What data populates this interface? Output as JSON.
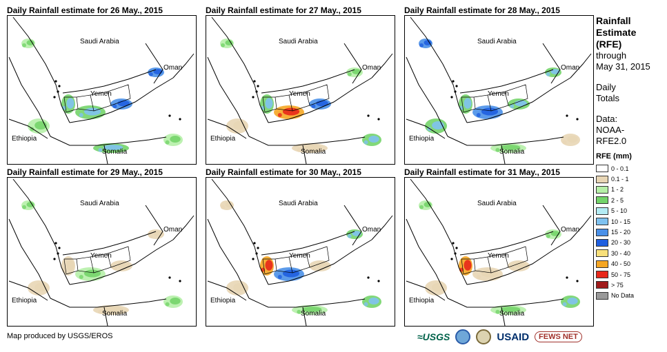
{
  "panels": [
    {
      "title": "Daily Rainfall estimate for 26 May., 2015",
      "rain": [
        "l",
        "l",
        "m",
        "m",
        "h",
        "m",
        "l",
        "h"
      ]
    },
    {
      "title": "Daily Rainfall estimate for 27 May., 2015",
      "rain": [
        "t",
        "l",
        "m",
        "x",
        "h",
        "t",
        "m",
        "l"
      ]
    },
    {
      "title": "Daily Rainfall estimate for 28 May., 2015",
      "rain": [
        "m",
        "h",
        "m",
        "h",
        "m",
        "l",
        "t",
        "m"
      ]
    },
    {
      "title": "Daily Rainfall estimate for 29 May., 2015",
      "rain": [
        "t",
        "l",
        "t",
        "l",
        "t",
        "t",
        "l",
        "t"
      ]
    },
    {
      "title": "Daily Rainfall estimate for 30 May., 2015",
      "rain": [
        "t",
        "t",
        "x",
        "h",
        "t",
        "l",
        "m",
        "m"
      ]
    },
    {
      "title": "Daily Rainfall estimate for 31 May., 2015",
      "rain": [
        "t",
        "l",
        "x",
        "t",
        "t",
        "l",
        "m",
        "l"
      ]
    }
  ],
  "countries": {
    "saudi": "Saudi Arabia",
    "oman": "Oman",
    "yemen": "Yemen",
    "ethiopia": "Ethiopia",
    "somalia": "Somalia"
  },
  "legend": {
    "title_line1": "Rainfall",
    "title_line2": "Estimate",
    "title_line3": "(RFE)",
    "through": "through",
    "date": "May 31, 2015",
    "daily": "Daily",
    "totals": "Totals",
    "data_label": "Data:",
    "data_source1": "NOAA-",
    "data_source2": "RFE2.0",
    "units": "RFE (mm)",
    "bins": [
      {
        "label": "0 - 0.1",
        "color": "#ffffff"
      },
      {
        "label": "0.1 - 1",
        "color": "#e8d6b5"
      },
      {
        "label": "1 - 2",
        "color": "#b6f0a8"
      },
      {
        "label": "2 - 5",
        "color": "#74d46a"
      },
      {
        "label": "5 - 10",
        "color": "#b4ecf4"
      },
      {
        "label": "10 - 15",
        "color": "#7fc2f0"
      },
      {
        "label": "15 - 20",
        "color": "#4a90e8"
      },
      {
        "label": "20 - 30",
        "color": "#1f5fe0"
      },
      {
        "label": "30 - 40",
        "color": "#f8e07a"
      },
      {
        "label": "40 - 50",
        "color": "#f5a623"
      },
      {
        "label": "50 - 75",
        "color": "#e8281a"
      },
      {
        "label": "> 75",
        "color": "#a01b1b"
      },
      {
        "label": "No Data",
        "color": "#999999"
      }
    ]
  },
  "credit": "Map produced by USGS/EROS",
  "logos": {
    "usgs": "≈USGS",
    "usaid": "USAID",
    "fews": "FEWS NET"
  }
}
